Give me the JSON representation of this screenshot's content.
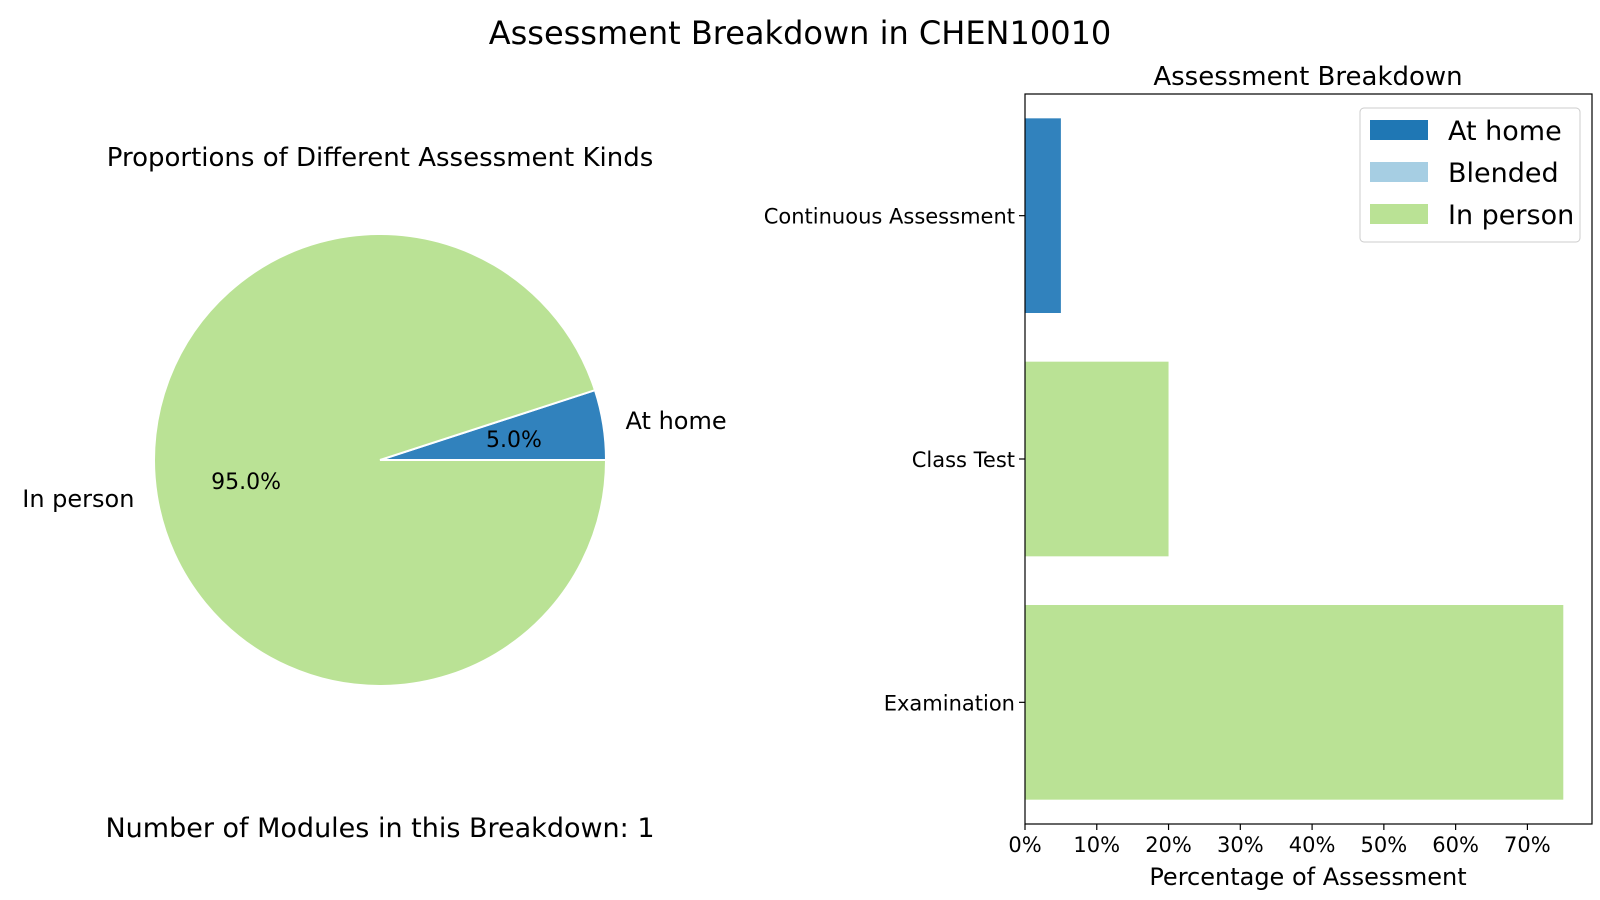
{
  "figure": {
    "title": "Assessment Breakdown in CHEN10010",
    "note": "Number of Modules in this Breakdown: 1"
  },
  "colors": {
    "at_home": "#3182bd",
    "at_home_legend": "#1f77b4",
    "blended": "#a6cee3",
    "in_person": "#bae295"
  },
  "chart_data": [
    {
      "type": "pie",
      "title": "Proportions of Different Assessment Kinds",
      "slices": [
        {
          "label": "At home",
          "value": 5.0,
          "pct_label": "5.0%",
          "color": "#3182bd"
        },
        {
          "label": "In person",
          "value": 95.0,
          "pct_label": "95.0%",
          "color": "#bae295"
        }
      ]
    },
    {
      "type": "bar",
      "orientation": "horizontal",
      "stacked": true,
      "title": "Assessment Breakdown",
      "xlabel": "Percentage of Assessment",
      "ylabel": "",
      "categories": [
        "Continuous Assessment",
        "Class Test",
        "Examination"
      ],
      "series": [
        {
          "name": "At home",
          "values": [
            5,
            0,
            0
          ],
          "color": "#3182bd"
        },
        {
          "name": "Blended",
          "values": [
            0,
            0,
            0
          ],
          "color": "#a6cee3"
        },
        {
          "name": "In person",
          "values": [
            0,
            20,
            75
          ],
          "color": "#bae295"
        }
      ],
      "xlim": [
        0,
        79
      ],
      "xticks": [
        0,
        10,
        20,
        30,
        40,
        50,
        60,
        70
      ],
      "xtick_labels": [
        "0%",
        "10%",
        "20%",
        "30%",
        "40%",
        "50%",
        "60%",
        "70%"
      ],
      "legend": {
        "position": "top-right",
        "entries": [
          {
            "label": "At home",
            "color": "#1f77b4"
          },
          {
            "label": "Blended",
            "color": "#a6cee3"
          },
          {
            "label": "In person",
            "color": "#bae295"
          }
        ]
      },
      "grid": false
    }
  ]
}
